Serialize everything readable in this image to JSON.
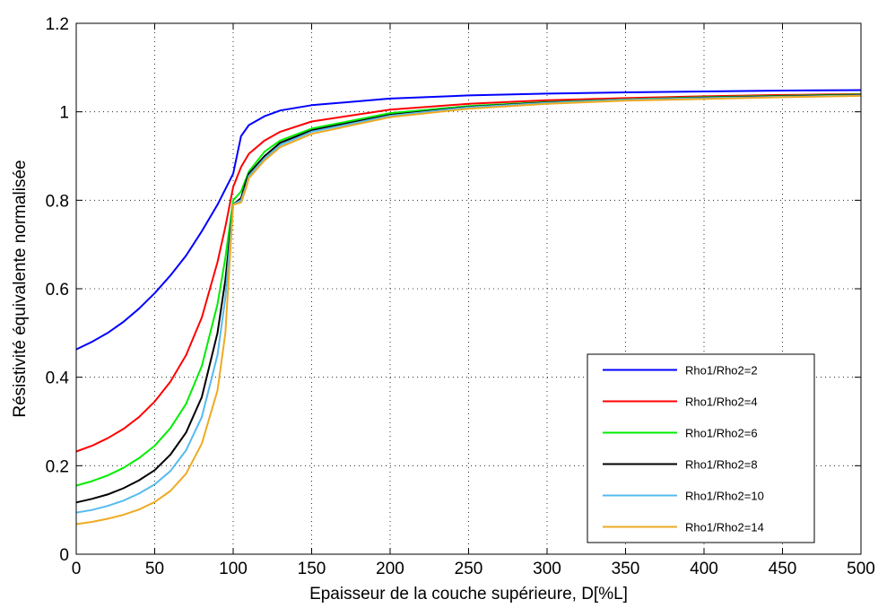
{
  "chart_data": {
    "type": "line",
    "xlabel": "Epaisseur de la couche supérieure, D[%L]",
    "ylabel": "Résistivité équivalente normalisée",
    "xlim": [
      0,
      500
    ],
    "ylim": [
      0,
      1.2
    ],
    "xticks": [
      0,
      50,
      100,
      150,
      200,
      250,
      300,
      350,
      400,
      450,
      500
    ],
    "yticks": [
      0,
      0.2,
      0.4,
      0.6,
      0.8,
      1,
      1.2
    ],
    "xtick_labels": [
      "0",
      "50",
      "100",
      "150",
      "200",
      "250",
      "300",
      "350",
      "400",
      "450",
      "500"
    ],
    "ytick_labels": [
      "0",
      "0.2",
      "0.4",
      "0.6",
      "0.8",
      "1",
      "1.2"
    ],
    "grid": true,
    "legend_position": "bottom-right",
    "series": [
      {
        "name": "Rho1/Rho2=2",
        "color": "#0000ff",
        "x": [
          0,
          10,
          20,
          30,
          40,
          50,
          60,
          70,
          80,
          90,
          100,
          105,
          110,
          120,
          130,
          150,
          200,
          250,
          300,
          350,
          400,
          450,
          500
        ],
        "y": [
          0.463,
          0.48,
          0.5,
          0.525,
          0.555,
          0.59,
          0.63,
          0.675,
          0.73,
          0.79,
          0.86,
          0.945,
          0.97,
          0.99,
          1.003,
          1.015,
          1.03,
          1.037,
          1.041,
          1.044,
          1.046,
          1.048,
          1.049
        ]
      },
      {
        "name": "Rho1/Rho2=4",
        "color": "#ff0000",
        "x": [
          0,
          10,
          20,
          30,
          40,
          50,
          60,
          70,
          80,
          90,
          95,
          100,
          105,
          110,
          120,
          130,
          150,
          200,
          250,
          300,
          350,
          400,
          450,
          500
        ],
        "y": [
          0.232,
          0.245,
          0.262,
          0.283,
          0.31,
          0.345,
          0.39,
          0.45,
          0.535,
          0.66,
          0.74,
          0.83,
          0.875,
          0.905,
          0.935,
          0.955,
          0.978,
          1.005,
          1.018,
          1.026,
          1.031,
          1.035,
          1.038,
          1.04
        ]
      },
      {
        "name": "Rho1/Rho2=6",
        "color": "#00ee00",
        "x": [
          0,
          10,
          20,
          30,
          40,
          50,
          60,
          70,
          80,
          90,
          95,
          100,
          105,
          110,
          120,
          130,
          150,
          200,
          250,
          300,
          350,
          400,
          450,
          500
        ],
        "y": [
          0.155,
          0.165,
          0.178,
          0.195,
          0.217,
          0.245,
          0.285,
          0.34,
          0.425,
          0.565,
          0.67,
          0.8,
          0.82,
          0.865,
          0.91,
          0.935,
          0.962,
          0.997,
          1.013,
          1.022,
          1.028,
          1.033,
          1.036,
          1.039
        ]
      },
      {
        "name": "Rho1/Rho2=8",
        "color": "#000000",
        "x": [
          0,
          10,
          20,
          30,
          40,
          50,
          60,
          70,
          80,
          90,
          95,
          100,
          105,
          108,
          110,
          120,
          130,
          150,
          200,
          250,
          300,
          350,
          400,
          450,
          500
        ],
        "y": [
          0.117,
          0.125,
          0.135,
          0.149,
          0.167,
          0.19,
          0.225,
          0.275,
          0.355,
          0.5,
          0.62,
          0.79,
          0.805,
          0.84,
          0.86,
          0.9,
          0.93,
          0.958,
          0.993,
          1.011,
          1.021,
          1.027,
          1.032,
          1.035,
          1.038
        ]
      },
      {
        "name": "Rho1/Rho2=10",
        "color": "#55bbee",
        "x": [
          0,
          10,
          20,
          30,
          40,
          50,
          60,
          70,
          80,
          90,
          95,
          100,
          105,
          108,
          110,
          120,
          130,
          150,
          200,
          250,
          300,
          350,
          400,
          450,
          500
        ],
        "y": [
          0.094,
          0.1,
          0.109,
          0.121,
          0.137,
          0.158,
          0.188,
          0.235,
          0.31,
          0.45,
          0.58,
          0.79,
          0.8,
          0.83,
          0.855,
          0.895,
          0.925,
          0.955,
          0.991,
          1.01,
          1.02,
          1.027,
          1.031,
          1.034,
          1.037
        ]
      },
      {
        "name": "Rho1/Rho2=14",
        "color": "#eeaa22",
        "x": [
          0,
          10,
          20,
          30,
          40,
          50,
          60,
          70,
          80,
          90,
          95,
          100,
          105,
          108,
          110,
          120,
          130,
          150,
          200,
          250,
          300,
          350,
          400,
          450,
          500
        ],
        "y": [
          0.068,
          0.073,
          0.08,
          0.089,
          0.101,
          0.118,
          0.143,
          0.182,
          0.25,
          0.37,
          0.5,
          0.79,
          0.795,
          0.825,
          0.85,
          0.89,
          0.92,
          0.95,
          0.988,
          1.007,
          1.018,
          1.025,
          1.029,
          1.033,
          1.036
        ]
      }
    ]
  }
}
